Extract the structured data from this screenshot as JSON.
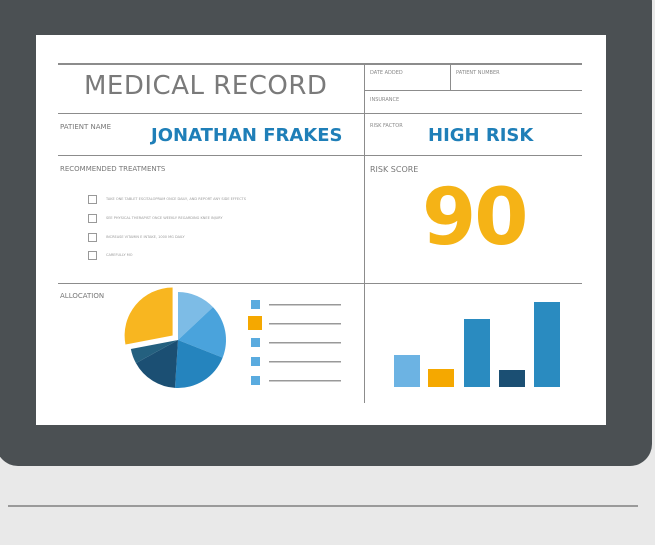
{
  "record": {
    "title": "MEDICAL RECORD",
    "date_added_label": "DATE ADDED",
    "patient_number_label": "PATIENT NUMBER",
    "insurance_label": "INSURANCE",
    "patient_name_label": "PATIENT NAME",
    "patient_name": "JONATHAN FRAKES",
    "risk_factor_label": "RISK FACTOR",
    "risk_factor": "HIGH RISK",
    "treatments_label": "RECOMMENDED TREATMENTS",
    "treatments": [
      "TAKE ONE TABLET ESCITALOPRAM ONCE DAILY, AND REPORT ANY SIDE EFFECTS",
      "SEE PHYSICAL THERAPIST ONCE WEEKLY REGARDING KNEE INJURY",
      "INCREASE VITAMIN E INTAKE, 1000 MG DAILY",
      "CAREFULLY MO"
    ],
    "risk_score_label": "RISK SCORE",
    "risk_score": "90",
    "allocation_label": "ALLOCATION"
  },
  "colors": {
    "accent_blue": "#1f7fb8",
    "accent_yellow": "#f5b316",
    "bezel": "#4b5053"
  },
  "chart_data": [
    {
      "type": "pie",
      "values": [
        13,
        18,
        20,
        16,
        5,
        28
      ],
      "colors": [
        "#7dbce6",
        "#4aa3dc",
        "#2584be",
        "#1b4f73",
        "#24607f",
        "#f8b620"
      ],
      "exploded": [
        5
      ],
      "legend_colors": [
        "#5aabdf",
        "#f5a800",
        "#5aabdf",
        "#5aabdf",
        "#5aabdf"
      ]
    },
    {
      "type": "bar",
      "values": [
        32,
        18,
        68,
        17,
        85
      ],
      "colors": [
        "#6cb3e3",
        "#f5a800",
        "#2a8bc0",
        "#1b4f73",
        "#2a8bc0"
      ]
    }
  ]
}
